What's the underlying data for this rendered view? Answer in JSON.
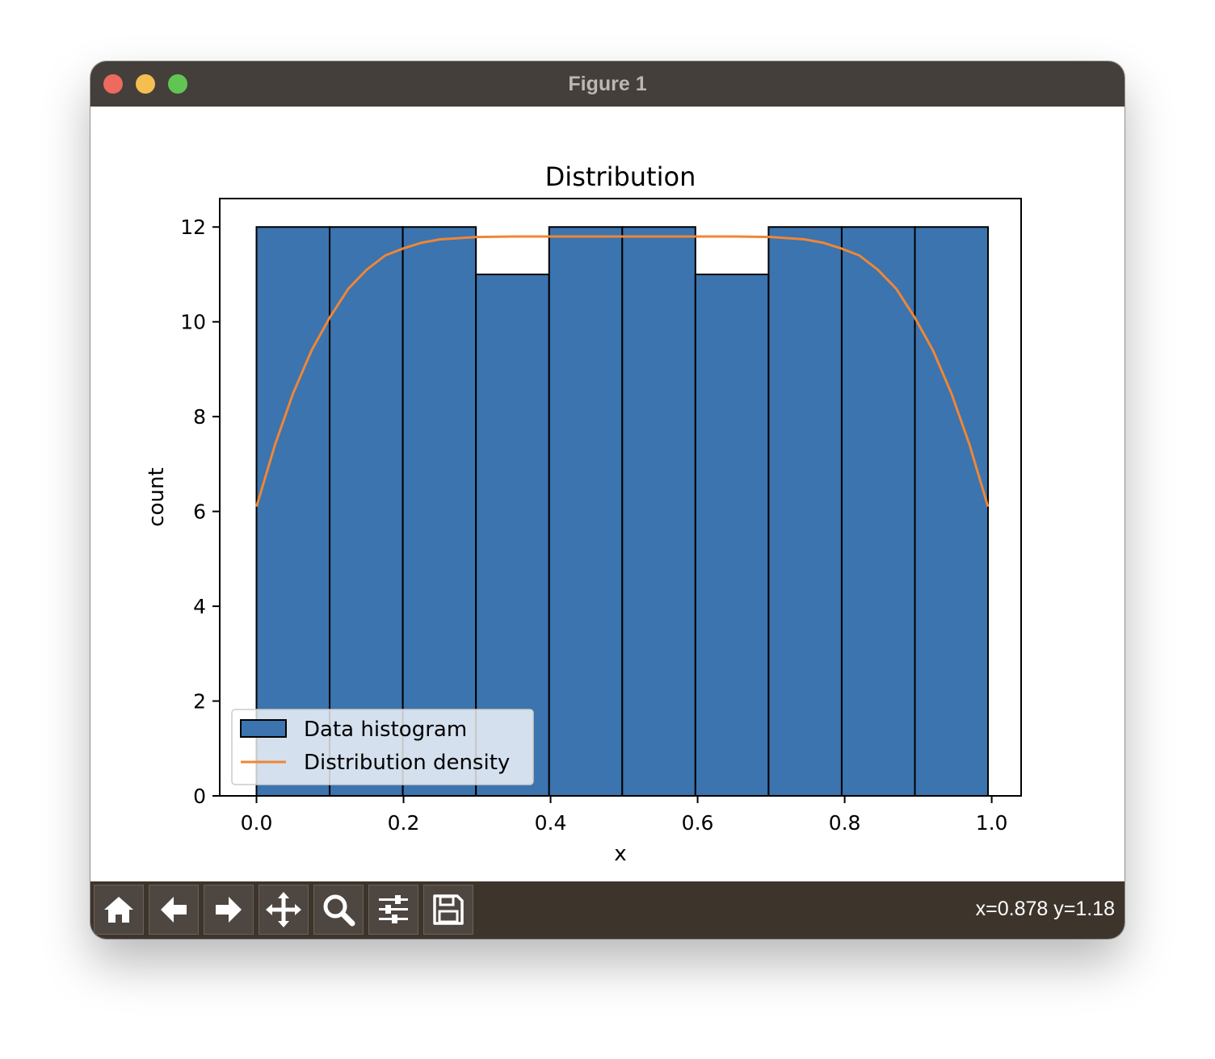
{
  "window": {
    "title": "Figure 1"
  },
  "toolbar": {
    "buttons": [
      {
        "name": "home",
        "icon": "home-icon"
      },
      {
        "name": "back",
        "icon": "arrow-left-icon"
      },
      {
        "name": "forward",
        "icon": "arrow-right-icon"
      },
      {
        "name": "pan",
        "icon": "move-icon"
      },
      {
        "name": "zoom",
        "icon": "magnifier-icon"
      },
      {
        "name": "configure",
        "icon": "sliders-icon"
      },
      {
        "name": "save",
        "icon": "floppy-icon"
      }
    ],
    "coords": "x=0.878 y=1.18"
  },
  "colors": {
    "bar_fill": "#3b74ae",
    "bar_edge": "#000000",
    "line": "#ef8636",
    "titlebar": "#443f3a",
    "toolbar": "#3d342c"
  },
  "chart_data": {
    "type": "bar",
    "title": "Distribution",
    "xlabel": "x",
    "ylabel": "count",
    "xlim": [
      -0.05,
      1.04
    ],
    "ylim": [
      0,
      12.6
    ],
    "xticks": [
      0.0,
      0.2,
      0.4,
      0.6,
      0.8,
      1.0
    ],
    "xtick_labels": [
      "0.0",
      "0.2",
      "0.4",
      "0.6",
      "0.8",
      "1.0"
    ],
    "yticks": [
      0,
      2,
      4,
      6,
      8,
      10,
      12
    ],
    "ytick_labels": [
      "0",
      "2",
      "4",
      "6",
      "8",
      "10",
      "12"
    ],
    "grid": false,
    "legend_position": "lower-left",
    "series": [
      {
        "name": "Data histogram",
        "kind": "histogram",
        "bin_edges": [
          0.0,
          0.0995,
          0.199,
          0.2985,
          0.398,
          0.4975,
          0.597,
          0.6965,
          0.796,
          0.8955,
          0.995
        ],
        "values": [
          12,
          12,
          12,
          11,
          12,
          12,
          11,
          12,
          12,
          12
        ]
      },
      {
        "name": "Distribution density",
        "kind": "line",
        "x": [
          0.0,
          0.025,
          0.05,
          0.075,
          0.1,
          0.125,
          0.15,
          0.175,
          0.2,
          0.225,
          0.25,
          0.3,
          0.35,
          0.4,
          0.45,
          0.5,
          0.55,
          0.6,
          0.65,
          0.7,
          0.745,
          0.77,
          0.795,
          0.82,
          0.845,
          0.87,
          0.895,
          0.92,
          0.945,
          0.97,
          0.995
        ],
        "y": [
          6.1,
          7.4,
          8.5,
          9.4,
          10.1,
          10.7,
          11.1,
          11.4,
          11.55,
          11.67,
          11.74,
          11.79,
          11.8,
          11.8,
          11.8,
          11.8,
          11.8,
          11.8,
          11.8,
          11.79,
          11.74,
          11.67,
          11.55,
          11.4,
          11.1,
          10.7,
          10.1,
          9.4,
          8.5,
          7.4,
          6.1
        ]
      }
    ]
  }
}
